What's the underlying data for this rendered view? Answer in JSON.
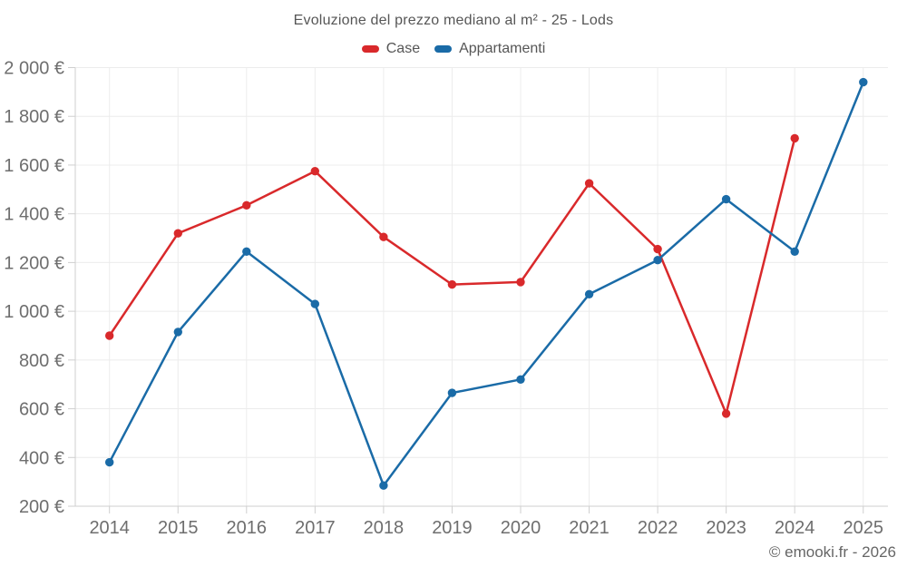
{
  "header": {
    "title": "Evoluzione del prezzo mediano al m² - 25 - Lods"
  },
  "footer": {
    "credit": "© emooki.fr - 2026"
  },
  "colors": {
    "case_red": "#d9292b",
    "appartamenti_blue": "#1a6ba7",
    "gridline": "#ececec",
    "axis": "#cfcfcf",
    "tick_text": "#6e6e6e"
  },
  "chart_data": {
    "type": "line",
    "title": "Evoluzione del prezzo mediano al m² - 25 - Lods",
    "categories": [
      "2014",
      "2015",
      "2016",
      "2017",
      "2018",
      "2019",
      "2020",
      "2021",
      "2022",
      "2023",
      "2024",
      "2025"
    ],
    "series": [
      {
        "name": "Case",
        "color": "#d9292b",
        "values": [
          900,
          1320,
          1435,
          1575,
          1305,
          1110,
          1120,
          1525,
          1255,
          580,
          1710,
          null
        ]
      },
      {
        "name": "Appartamenti",
        "color": "#1a6ba7",
        "values": [
          380,
          915,
          1245,
          1030,
          285,
          665,
          720,
          1070,
          1210,
          1460,
          1245,
          1940
        ]
      }
    ],
    "xlabel": "",
    "ylabel": "",
    "ylim": [
      200,
      2000
    ],
    "ytick_step": 200,
    "ytick_labels": [
      "200 €",
      "400 €",
      "600 €",
      "800 €",
      "1 000 €",
      "1 200 €",
      "1 400 €",
      "1 600 €",
      "1 800 €",
      "2 000 €"
    ],
    "grid": true,
    "legend_position": "top",
    "unit": "€"
  }
}
